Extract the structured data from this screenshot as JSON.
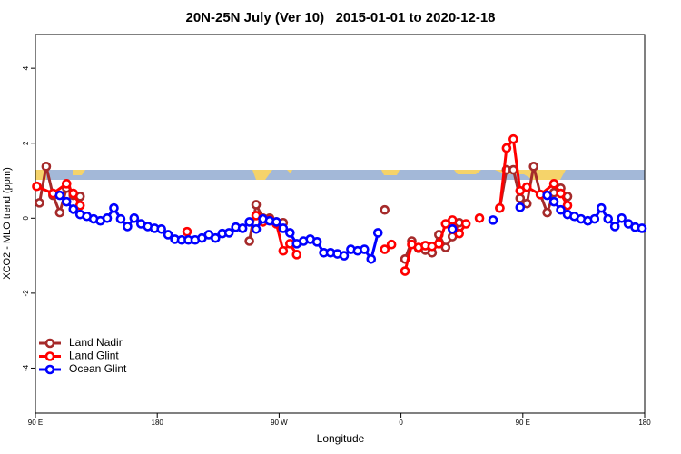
{
  "chart_data": {
    "type": "line",
    "title": "20N-25N July (Ver 10)   2015-01-01 to 2020-12-18",
    "xlabel": "Longitude",
    "ylabel": "XCO2 - MLO trend (ppm)",
    "xlim": [
      90,
      540
    ],
    "ylim": [
      -5.2,
      4.9
    ],
    "xticks": [
      {
        "value": 90,
        "label": "90 E"
      },
      180,
      {
        "value": 270,
        "label": "90 W"
      },
      {
        "value": 360,
        "label": "0"
      },
      {
        "value": 450,
        "label": "90 E"
      },
      {
        "value": 540,
        "label": "180"
      }
    ],
    "yticks": [
      -4,
      -2,
      0,
      2,
      4
    ],
    "legend": "bottomleft",
    "series": [
      {
        "name": "Land Nadir",
        "color": "#a52a2a",
        "x": [
          93,
          98,
          103,
          108,
          113,
          118,
          123,
          null,
          248,
          253,
          258,
          263,
          268,
          273,
          null,
          348,
          null,
          363,
          368,
          373,
          378,
          383,
          388,
          393,
          398,
          403,
          null,
          433,
          438,
          443,
          448,
          453,
          458,
          463,
          468,
          473,
          478,
          483
        ],
        "values": [
          0.41,
          1.38,
          0.61,
          0.15,
          0.8,
          0.61,
          0.58,
          null,
          -0.61,
          0.36,
          0,
          0,
          -0.1,
          -0.12,
          null,
          0.22,
          null,
          -1.09,
          -0.61,
          -0.8,
          -0.85,
          -0.92,
          -0.44,
          -0.78,
          -0.49,
          -0.12,
          null,
          0.27,
          1.29,
          1.29,
          0.53,
          0.39,
          1.38,
          0.63,
          0.15,
          0.68,
          0.8,
          0.58
        ]
      },
      {
        "name": "Land Glint",
        "color": "#ff0000",
        "x": [
          91,
          103,
          113,
          118,
          123,
          null,
          202,
          null,
          253,
          258,
          263,
          268,
          273,
          278,
          283,
          null,
          348,
          353,
          null,
          363,
          368,
          373,
          378,
          383,
          388,
          393,
          398,
          403,
          408,
          null,
          418,
          null,
          433,
          438,
          443,
          448,
          453,
          463,
          473,
          478,
          483
        ],
        "values": [
          0.85,
          0.66,
          0.92,
          0.66,
          0.34,
          null,
          -0.36,
          null,
          0.07,
          -0.1,
          -0.05,
          -0.15,
          -0.87,
          -0.68,
          -0.97,
          null,
          -0.83,
          -0.7,
          null,
          -1.41,
          -0.7,
          -0.78,
          -0.73,
          -0.75,
          -0.68,
          -0.15,
          -0.05,
          -0.41,
          -0.15,
          null,
          0,
          null,
          0.27,
          1.87,
          2.11,
          0.73,
          0.83,
          0.63,
          0.92,
          0.66,
          0.34
        ]
      },
      {
        "name": "Ocean Glint",
        "color": "#0000ff",
        "x": [
          108,
          113,
          118,
          123,
          128,
          133,
          138,
          143,
          148,
          153,
          158,
          163,
          168,
          173,
          178,
          183,
          188,
          193,
          198,
          203,
          208,
          213,
          218,
          223,
          228,
          233,
          238,
          243,
          248,
          253,
          258,
          263,
          268,
          273,
          278,
          283,
          288,
          293,
          298,
          303,
          308,
          313,
          318,
          323,
          328,
          333,
          338,
          343,
          null,
          398,
          null,
          428,
          null,
          448,
          null,
          468,
          473,
          478,
          483,
          488,
          493,
          498,
          503,
          508,
          513,
          518,
          523,
          528,
          533,
          538
        ],
        "values": [
          0.61,
          0.44,
          0.24,
          0.1,
          0.05,
          -0.02,
          -0.07,
          0,
          0.27,
          -0.02,
          -0.22,
          0,
          -0.15,
          -0.22,
          -0.27,
          -0.29,
          -0.44,
          -0.56,
          -0.58,
          -0.58,
          -0.58,
          -0.53,
          -0.44,
          -0.53,
          -0.41,
          -0.39,
          -0.24,
          -0.27,
          -0.1,
          -0.29,
          -0.02,
          -0.07,
          -0.1,
          -0.27,
          -0.39,
          -0.68,
          -0.61,
          -0.56,
          -0.63,
          -0.92,
          -0.92,
          -0.95,
          -1.0,
          -0.83,
          -0.87,
          -0.83,
          -1.09,
          -0.39,
          null,
          -0.29,
          null,
          -0.05,
          null,
          0.29,
          null,
          0.61,
          0.44,
          0.22,
          0.1,
          0.05,
          -0.02,
          -0.07,
          -0.02,
          0.27,
          -0.02,
          -0.22,
          0,
          -0.15,
          -0.24,
          -0.27
        ]
      }
    ]
  }
}
